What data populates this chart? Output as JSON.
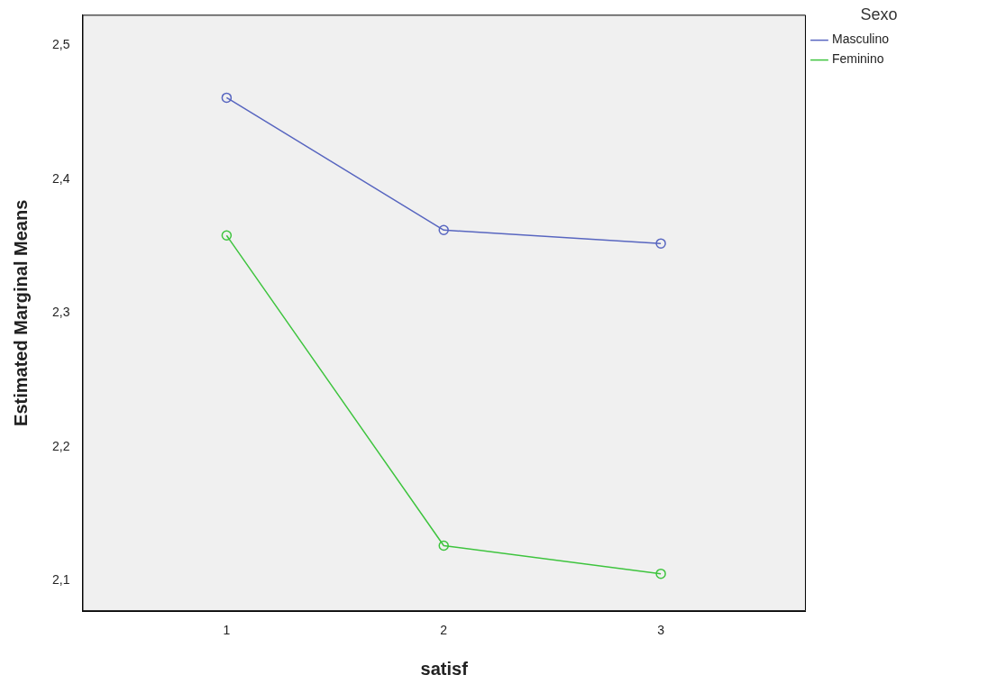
{
  "chart_data": {
    "type": "line",
    "xlabel": "satisf",
    "ylabel": "Estimated Marginal Means",
    "legend_title": "Sexo",
    "legend": "top right",
    "marker": "circle",
    "line_style": "solid",
    "grid": false,
    "x": [
      1,
      2,
      3
    ],
    "xlim": [
      0.336,
      3.668
    ],
    "xticks": [
      1,
      2,
      3
    ],
    "ylim": [
      2.077,
      2.523
    ],
    "yticks": [
      {
        "value": 2.1,
        "label": "2,1"
      },
      {
        "value": 2.2,
        "label": "2,2"
      },
      {
        "value": 2.3,
        "label": "2,3"
      },
      {
        "value": 2.4,
        "label": "2,4"
      },
      {
        "value": 2.5,
        "label": "2,5"
      }
    ],
    "series": [
      {
        "name": "Masculino",
        "color": "#5866c0",
        "values": [
          2.461,
          2.362,
          2.352
        ]
      },
      {
        "name": "Feminino",
        "color": "#3ec43e",
        "values": [
          2.358,
          2.126,
          2.105
        ]
      }
    ]
  }
}
